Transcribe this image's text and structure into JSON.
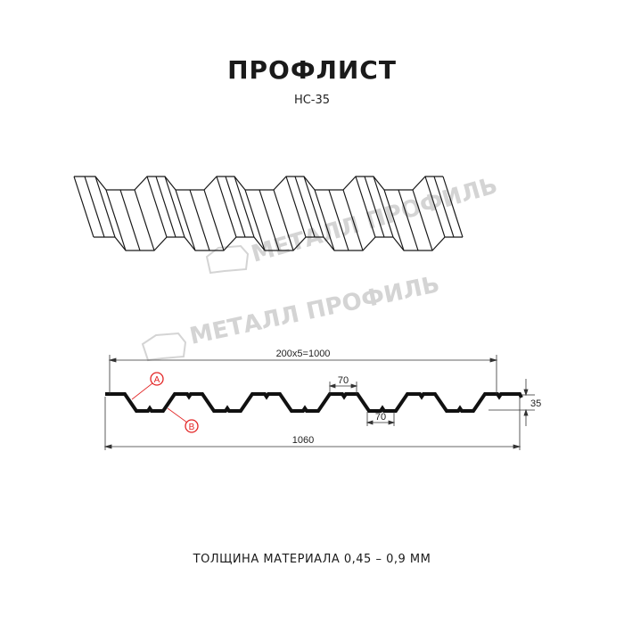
{
  "title": "ПРОФЛИСТ",
  "subtitle": "НС-35",
  "footer": "ТОЛЩИНА МАТЕРИАЛА 0,45 – 0,9 ММ",
  "watermark": "МЕТАЛЛ ПРОФИЛЬ",
  "dimensions": {
    "pitch_total": "200x5=1000",
    "full_width": "1060",
    "top_width": "70",
    "bottom_width": "70",
    "height": "35"
  },
  "callouts": {
    "a": "A",
    "b": "B"
  },
  "colors": {
    "line": "#1a1a1a",
    "callout": "#e32626",
    "watermark": "#d4d4d4"
  }
}
